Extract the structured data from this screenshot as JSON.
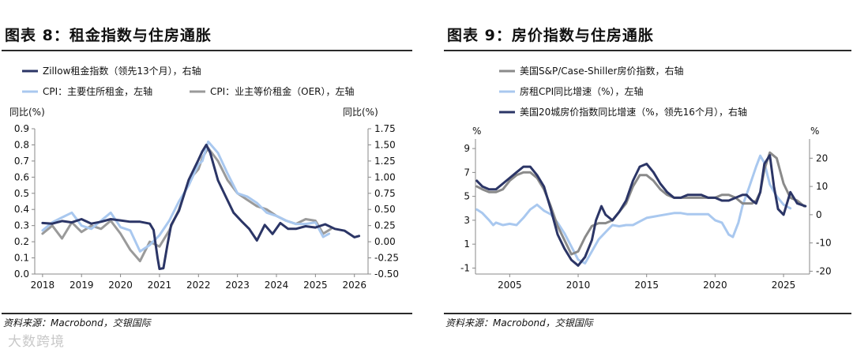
{
  "left": {
    "title": "图表 8：租金指数与住房通胀",
    "source": "资料来源：Macrobond，交银国际",
    "left_axis_title": "同比(%)",
    "right_axis_title": "同比(%)",
    "colors": {
      "zillow": "#2b3566",
      "cpi_rent": "#a9c8ef",
      "oer": "#9a9a9a"
    },
    "chart_data": {
      "type": "line",
      "title": "租金指数与住房通胀",
      "xlim": [
        2017.8,
        2026.35
      ],
      "x_ticks": [
        2018,
        2019,
        2020,
        2021,
        2022,
        2023,
        2024,
        2025,
        2026
      ],
      "x_tick_labels": [
        "2018",
        "2019",
        "2020",
        "2021",
        "2022",
        "2023",
        "2024",
        "2025",
        "2026"
      ],
      "left_axis": {
        "label": "同比(%)",
        "ylim": [
          0.0,
          0.9
        ],
        "ticks": [
          0.0,
          0.1,
          0.2,
          0.3,
          0.4,
          0.5,
          0.6,
          0.7,
          0.8,
          0.9
        ],
        "tick_labels": [
          "0.0",
          "0.1",
          "0.2",
          "0.3",
          "0.4",
          "0.5",
          "0.6",
          "0.7",
          "0.8",
          "0.9"
        ]
      },
      "right_axis": {
        "label": "同比(%)",
        "ylim": [
          -0.5,
          1.75
        ],
        "ticks": [
          -0.5,
          -0.25,
          0.0,
          0.25,
          0.5,
          0.75,
          1.0,
          1.25,
          1.5,
          1.75
        ],
        "tick_labels": [
          "-0.50",
          "-0.25",
          "0.00",
          "0.25",
          "0.50",
          "0.75",
          "1.00",
          "1.25",
          "1.50",
          "1.75"
        ]
      },
      "series": [
        {
          "name": "Zillow租金指数（领先13个月），右轴",
          "axis": "right",
          "color": "#2b3566",
          "x": [
            2018.0,
            2018.25,
            2018.5,
            2018.75,
            2019.0,
            2019.25,
            2019.5,
            2019.75,
            2020.0,
            2020.25,
            2020.5,
            2020.75,
            2020.85,
            2020.95,
            2021.0,
            2021.1,
            2021.2,
            2021.3,
            2021.5,
            2021.75,
            2022.0,
            2022.1,
            2022.2,
            2022.3,
            2022.5,
            2022.7,
            2022.9,
            2023.1,
            2023.3,
            2023.5,
            2023.7,
            2023.9,
            2024.1,
            2024.3,
            2024.5,
            2024.75,
            2025.0,
            2025.25,
            2025.5,
            2025.75,
            2026.0,
            2026.12
          ],
          "values": [
            0.29,
            0.28,
            0.32,
            0.3,
            0.35,
            0.28,
            0.31,
            0.35,
            0.33,
            0.31,
            0.31,
            0.28,
            0.18,
            -0.25,
            -0.42,
            -0.41,
            -0.06,
            0.26,
            0.48,
            0.96,
            1.27,
            1.4,
            1.5,
            1.38,
            0.95,
            0.7,
            0.45,
            0.32,
            0.2,
            0.02,
            0.26,
            0.12,
            0.29,
            0.2,
            0.2,
            0.24,
            0.22,
            0.27,
            0.2,
            0.17,
            0.07,
            0.09
          ]
        },
        {
          "name": "CPI：主要住所租金，左轴",
          "axis": "left",
          "color": "#a9c8ef",
          "x": [
            2018.0,
            2018.25,
            2018.5,
            2018.75,
            2019.0,
            2019.25,
            2019.5,
            2019.75,
            2020.0,
            2020.25,
            2020.5,
            2020.75,
            2021.0,
            2021.25,
            2021.5,
            2021.75,
            2022.0,
            2022.1,
            2022.25,
            2022.5,
            2022.75,
            2023.0,
            2023.25,
            2023.5,
            2023.75,
            2024.0,
            2024.25,
            2024.5,
            2024.75,
            2025.0,
            2025.2,
            2025.35
          ],
          "values": [
            0.27,
            0.32,
            0.35,
            0.38,
            0.3,
            0.28,
            0.33,
            0.38,
            0.29,
            0.27,
            0.14,
            0.18,
            0.24,
            0.33,
            0.45,
            0.55,
            0.68,
            0.7,
            0.82,
            0.75,
            0.62,
            0.5,
            0.48,
            0.44,
            0.38,
            0.36,
            0.33,
            0.31,
            0.31,
            0.32,
            0.23,
            0.25
          ]
        },
        {
          "name": "CPI：业主等价租金（OER），左轴",
          "axis": "left",
          "color": "#9a9a9a",
          "x": [
            2018.0,
            2018.25,
            2018.5,
            2018.75,
            2019.0,
            2019.25,
            2019.5,
            2019.75,
            2020.0,
            2020.25,
            2020.5,
            2020.75,
            2021.0,
            2021.25,
            2021.5,
            2021.75,
            2022.0,
            2022.1,
            2022.25,
            2022.5,
            2022.75,
            2023.0,
            2023.25,
            2023.5,
            2023.75,
            2024.0,
            2024.25,
            2024.5,
            2024.75,
            2025.0,
            2025.2,
            2025.4
          ],
          "values": [
            0.25,
            0.3,
            0.22,
            0.32,
            0.26,
            0.3,
            0.28,
            0.33,
            0.25,
            0.15,
            0.08,
            0.2,
            0.17,
            0.27,
            0.4,
            0.58,
            0.65,
            0.72,
            0.78,
            0.7,
            0.58,
            0.5,
            0.46,
            0.42,
            0.4,
            0.36,
            0.33,
            0.31,
            0.34,
            0.33,
            0.25,
            0.28
          ]
        }
      ]
    }
  },
  "right": {
    "title": "图表 9：房价指数与住房通胀",
    "source": "资料来源：Macrobond，交银国际",
    "left_axis_title": "%",
    "right_axis_title": "%",
    "colors": {
      "case_shiller": "#8a8a8a",
      "rent_cpi": "#a9c8ef",
      "city20": "#2b3566"
    },
    "chart_data": {
      "type": "line",
      "title": "房价指数与住房通胀",
      "xlim": [
        2002.5,
        2026.9
      ],
      "x_ticks": [
        2005,
        2010,
        2015,
        2020,
        2025
      ],
      "x_tick_labels": [
        "2005",
        "2010",
        "2015",
        "2020",
        "2025"
      ],
      "left_axis": {
        "label": "%",
        "ylim": [
          -1.5,
          9.8
        ],
        "ticks": [
          -1,
          1,
          3,
          5,
          7,
          9
        ],
        "tick_labels": [
          "-1",
          "1",
          "3",
          "5",
          "7",
          "9"
        ]
      },
      "right_axis": {
        "label": "%",
        "ylim": [
          -21.0,
          26.8
        ],
        "ticks": [
          -20,
          -10,
          0,
          10,
          20
        ],
        "tick_labels": [
          "-20",
          "-10",
          "0",
          "10",
          "20"
        ]
      },
      "series": [
        {
          "name": "美国S&P/Case-Shiller房价指数，右轴",
          "axis": "right",
          "color": "#8a8a8a",
          "x": [
            2002.6,
            2003.0,
            2003.5,
            2004.0,
            2004.5,
            2005.0,
            2005.5,
            2006.0,
            2006.5,
            2007.0,
            2007.5,
            2008.0,
            2008.5,
            2009.0,
            2009.5,
            2010.0,
            2010.5,
            2011.0,
            2011.5,
            2012.0,
            2012.5,
            2013.0,
            2013.5,
            2014.0,
            2014.5,
            2015.0,
            2015.5,
            2016.0,
            2016.5,
            2017.0,
            2017.5,
            2018.0,
            2018.5,
            2019.0,
            2019.5,
            2020.0,
            2020.5,
            2021.0,
            2021.5,
            2022.0,
            2022.3,
            2022.7,
            2023.0,
            2023.3,
            2023.6,
            2024.0,
            2024.5,
            2025.0,
            2025.5,
            2026.0,
            2026.5
          ],
          "values": [
            10,
            9,
            8,
            8,
            9,
            12,
            14,
            15,
            15,
            13,
            9,
            3,
            -4,
            -9,
            -14,
            -13,
            -8,
            -4,
            -3,
            -3,
            -2,
            1,
            4,
            10,
            14,
            14,
            12,
            9,
            7,
            6,
            6,
            6,
            6,
            6,
            6,
            6,
            7,
            7,
            6,
            4,
            4,
            4,
            5,
            8,
            16,
            22,
            20,
            11,
            6,
            5,
            3
          ]
        },
        {
          "name": "房租CPI同比增速（%），左轴",
          "axis": "left",
          "color": "#a9c8ef",
          "x": [
            2002.6,
            2003.0,
            2003.5,
            2003.8,
            2004.0,
            2004.5,
            2005.0,
            2005.5,
            2006.0,
            2006.5,
            2007.0,
            2007.5,
            2008.0,
            2008.5,
            2009.0,
            2009.5,
            2010.0,
            2010.5,
            2011.0,
            2011.5,
            2012.0,
            2012.5,
            2013.0,
            2013.5,
            2014.0,
            2014.5,
            2015.0,
            2015.5,
            2016.0,
            2016.5,
            2017.0,
            2017.5,
            2018.0,
            2018.5,
            2019.0,
            2019.5,
            2020.0,
            2020.5,
            2021.0,
            2021.3,
            2021.7,
            2022.0,
            2022.5,
            2023.0,
            2023.3,
            2023.6,
            2024.0,
            2024.5,
            2025.0,
            2025.5
          ],
          "values": [
            3.9,
            3.6,
            3.0,
            2.6,
            2.8,
            2.6,
            2.7,
            2.6,
            3.2,
            3.9,
            4.3,
            3.8,
            3.5,
            2.8,
            1.9,
            0.8,
            -0.3,
            -0.6,
            0.4,
            1.4,
            2.0,
            2.6,
            2.5,
            2.6,
            2.6,
            2.9,
            3.2,
            3.3,
            3.4,
            3.5,
            3.6,
            3.6,
            3.5,
            3.5,
            3.5,
            3.5,
            3.0,
            2.8,
            1.8,
            1.6,
            2.8,
            4.2,
            5.8,
            7.5,
            8.4,
            7.8,
            6.0,
            5.0,
            4.3,
            4.0
          ]
        },
        {
          "name": "美国20城房价指数同比增速（%，领先16个月），右轴",
          "axis": "right",
          "color": "#2b3566",
          "x": [
            2002.6,
            2003.0,
            2003.5,
            2004.0,
            2004.5,
            2005.0,
            2005.5,
            2006.0,
            2006.5,
            2007.0,
            2007.5,
            2008.0,
            2008.5,
            2009.0,
            2009.5,
            2010.0,
            2010.5,
            2011.0,
            2011.3,
            2011.7,
            2012.0,
            2012.5,
            2013.0,
            2013.5,
            2014.0,
            2014.5,
            2015.0,
            2015.5,
            2016.0,
            2016.5,
            2017.0,
            2017.5,
            2018.0,
            2018.5,
            2019.0,
            2019.5,
            2020.0,
            2020.5,
            2021.0,
            2021.5,
            2022.0,
            2022.3,
            2022.7,
            2023.0,
            2023.3,
            2023.6,
            2024.0,
            2024.3,
            2024.6,
            2025.0,
            2025.5,
            2026.0,
            2026.6
          ],
          "values": [
            12,
            10,
            9,
            9,
            11,
            13,
            15,
            17,
            17,
            14,
            10,
            2,
            -7,
            -12,
            -16,
            -18,
            -15,
            -9,
            -2,
            3,
            0,
            -2,
            1,
            5,
            12,
            17,
            18,
            15,
            11,
            8,
            6,
            6,
            7,
            7,
            7,
            6,
            6,
            5,
            5,
            6,
            7,
            7,
            5,
            4,
            8,
            18,
            21,
            10,
            2,
            0,
            8,
            4,
            3
          ]
        }
      ]
    }
  },
  "watermark": "大数跨境"
}
